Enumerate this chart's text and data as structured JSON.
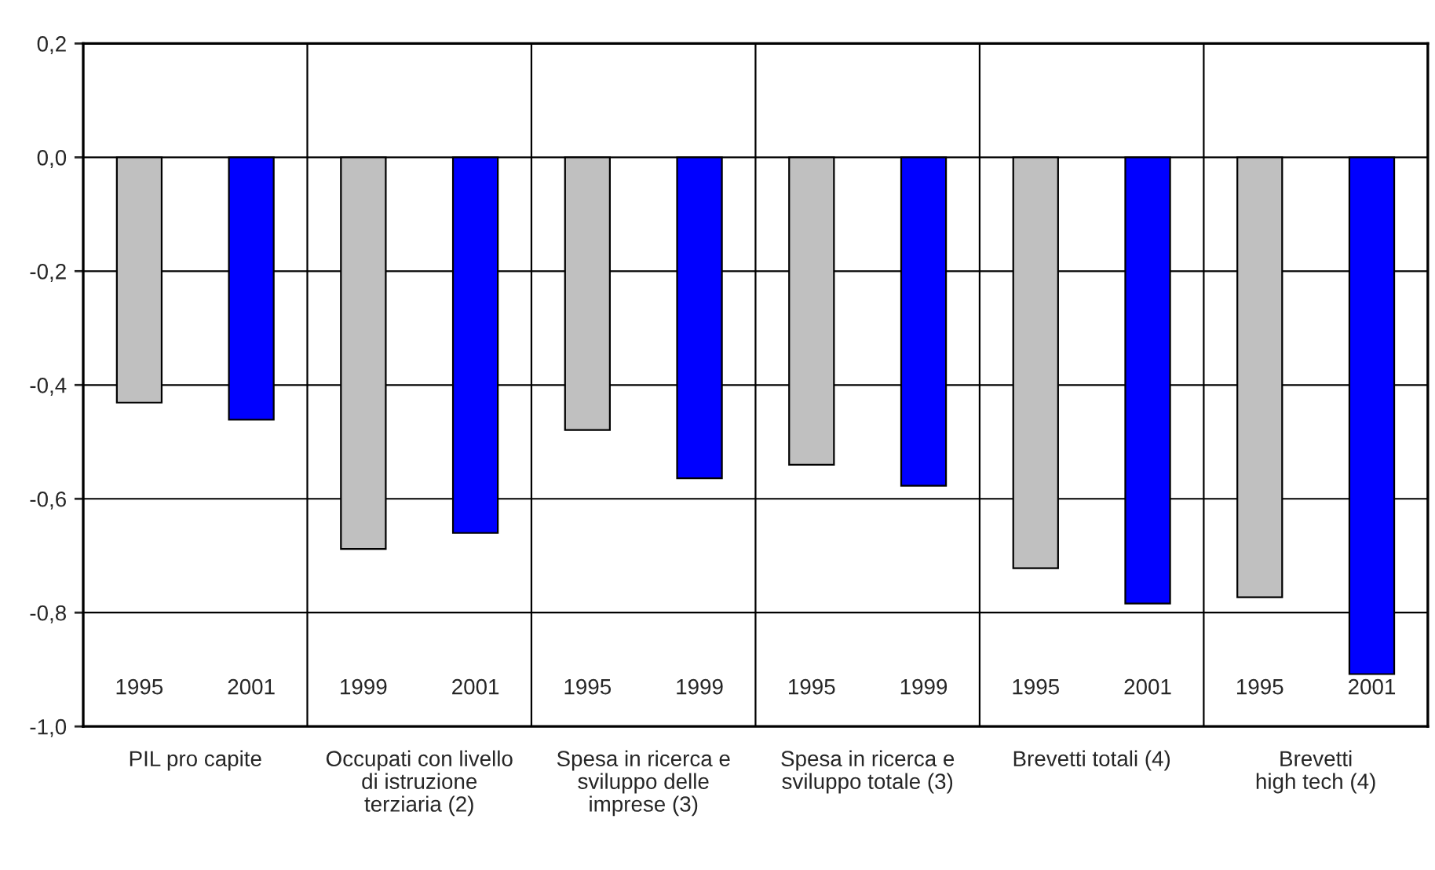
{
  "chart_data": {
    "type": "bar",
    "categories": [
      "1995",
      "2001",
      "1999",
      "2001",
      "1995",
      "1999",
      "1995",
      "1999",
      "1995",
      "2001",
      "1995",
      "2001"
    ],
    "values": [
      -0.431,
      -0.461,
      -0.688,
      -0.66,
      -0.479,
      -0.564,
      -0.54,
      -0.577,
      -0.722,
      -0.784,
      -0.773,
      -0.908
    ],
    "colors": [
      "#c0c0c0",
      "#0000ff",
      "#c0c0c0",
      "#0000ff",
      "#c0c0c0",
      "#0000ff",
      "#c0c0c0",
      "#0000ff",
      "#c0c0c0",
      "#0000ff",
      "#c0c0c0",
      "#0000ff"
    ],
    "ylim": [
      -1.0,
      0.2
    ],
    "yticks": [
      {
        "value": -1.0,
        "label": "-1,0"
      },
      {
        "value": -0.8,
        "label": "-0,8"
      },
      {
        "value": -0.6,
        "label": "-0,6"
      },
      {
        "value": -0.4,
        "label": "-0,4"
      },
      {
        "value": -0.2,
        "label": "-0,2"
      },
      {
        "value": 0.0,
        "label": "0,0"
      },
      {
        "value": 0.2,
        "label": "0,2"
      }
    ],
    "grid": "y",
    "annotations": [
      "PIL pro capite",
      "Occupati con livello\ndi istruzione\nterziaria (2)",
      "Spesa in ricerca e\nsviluppo delle\nimprese (3)",
      "Spesa in ricerca e\nsviluppo totale (3)",
      "Brevetti totali (4)",
      "Brevetti\nhigh tech (4)"
    ]
  }
}
